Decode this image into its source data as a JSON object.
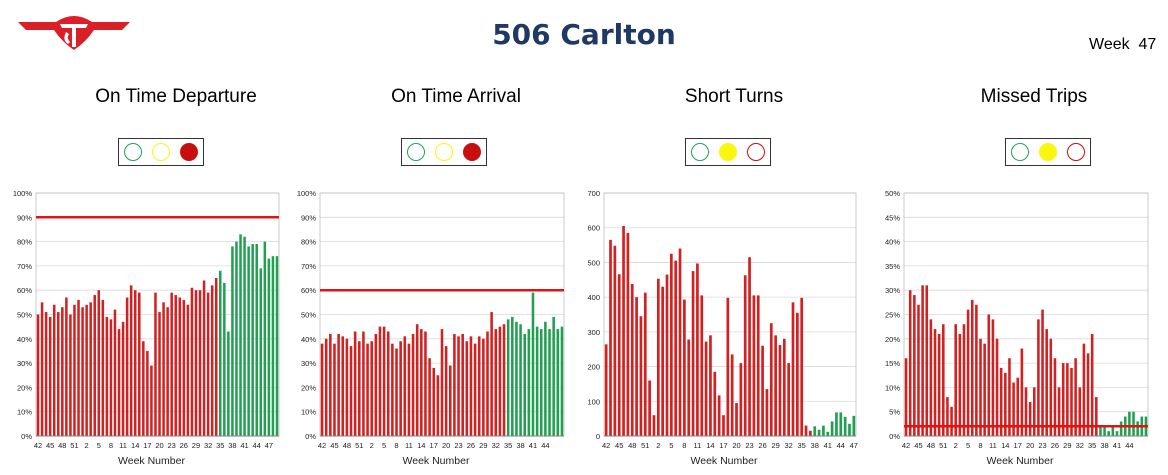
{
  "header": {
    "title": "506 Carlton",
    "week_label": "Week",
    "week_number": "47"
  },
  "colors": {
    "red": "#d32020",
    "green": "#22a052",
    "target": "#e51010",
    "title": "#1f3864",
    "light_green": "#21a35e",
    "light_yellow": "#f7f712",
    "light_red": "#c80f0f"
  },
  "panels": [
    {
      "title": "On Time Departure",
      "lights": {
        "green": "off",
        "yellow": "off",
        "red": "on"
      }
    },
    {
      "title": "On Time Arrival",
      "lights": {
        "green": "off",
        "yellow": "off",
        "red": "on"
      }
    },
    {
      "title": "Short Turns",
      "lights": {
        "green": "off",
        "yellow": "on",
        "red": "off"
      }
    },
    {
      "title": "Missed Trips",
      "lights": {
        "green": "off",
        "yellow": "on",
        "red": "off"
      }
    }
  ],
  "chart_data": [
    {
      "type": "bar",
      "xlabel": "Week Number",
      "ylim": [
        0,
        100
      ],
      "y_ticks": [
        "0%",
        "10%",
        "20%",
        "30%",
        "40%",
        "50%",
        "60%",
        "70%",
        "80%",
        "90%",
        "100%"
      ],
      "x_tick_labels": [
        "42",
        "45",
        "48",
        "51",
        "2",
        "5",
        "8",
        "11",
        "14",
        "17",
        "20",
        "23",
        "26",
        "29",
        "32",
        "35",
        "38",
        "41",
        "44",
        "47"
      ],
      "target": 90,
      "red_count": 45,
      "values": [
        50,
        55,
        51,
        49,
        54,
        51,
        53,
        57,
        50,
        54,
        56,
        53,
        54,
        55,
        58,
        60,
        56,
        49,
        48,
        52,
        44,
        47,
        57,
        62,
        60,
        59,
        39,
        35,
        29,
        59,
        51,
        55,
        53,
        59,
        58,
        57,
        56,
        54,
        61,
        60,
        60,
        64,
        59,
        62,
        65,
        68,
        63,
        43,
        78,
        80,
        83,
        82,
        78,
        79,
        79,
        69,
        80,
        73,
        74,
        74
      ],
      "grid": true
    },
    {
      "type": "bar",
      "xlabel": "Week Number",
      "ylim": [
        0,
        100
      ],
      "y_ticks": [
        "0%",
        "10%",
        "20%",
        "30%",
        "40%",
        "50%",
        "60%",
        "70%",
        "80%",
        "90%",
        "100%"
      ],
      "x_tick_labels": [
        "42",
        "45",
        "48",
        "51",
        "2",
        "5",
        "8",
        "11",
        "14",
        "17",
        "20",
        "23",
        "26",
        "29",
        "32",
        "35",
        "38",
        "41",
        "44"
      ],
      "target": 60,
      "red_count": 45,
      "values": [
        38,
        40,
        42,
        38,
        42,
        41,
        40,
        37,
        43,
        39,
        43,
        38,
        39,
        42,
        45,
        45,
        43,
        38,
        36,
        39,
        41,
        38,
        42,
        46,
        44,
        43,
        32,
        28,
        25,
        44,
        37,
        29,
        42,
        41,
        42,
        39,
        41,
        38,
        41,
        40,
        43,
        51,
        44,
        45,
        46,
        48,
        49,
        47,
        46,
        42,
        44,
        59,
        45,
        44,
        47,
        44,
        49,
        44,
        45
      ],
      "grid": true
    },
    {
      "type": "bar",
      "xlabel": "Week Number",
      "ylim": [
        0,
        700
      ],
      "y_ticks": [
        "0",
        "100",
        "200",
        "300",
        "400",
        "500",
        "600",
        "700"
      ],
      "x_tick_labels": [
        "42",
        "45",
        "48",
        "51",
        "2",
        "5",
        "8",
        "11",
        "14",
        "17",
        "20",
        "23",
        "26",
        "29",
        "32",
        "35",
        "38",
        "41",
        "44",
        "47"
      ],
      "red_count": 48,
      "values": [
        264,
        565,
        548,
        466,
        605,
        585,
        438,
        400,
        345,
        413,
        160,
        60,
        453,
        430,
        465,
        525,
        505,
        540,
        393,
        278,
        475,
        497,
        405,
        272,
        290,
        185,
        117,
        60,
        398,
        235,
        95,
        210,
        463,
        515,
        405,
        405,
        260,
        135,
        325,
        290,
        262,
        280,
        210,
        385,
        355,
        398,
        30,
        15,
        28,
        18,
        30,
        12,
        42,
        68,
        68,
        55,
        35,
        58
      ],
      "grid": true
    },
    {
      "type": "bar",
      "xlabel": "Week Number",
      "ylim": [
        0,
        50
      ],
      "y_ticks": [
        "0%",
        "5%",
        "10%",
        "15%",
        "20%",
        "25%",
        "30%",
        "35%",
        "40%",
        "45%",
        "50%"
      ],
      "x_tick_labels": [
        "42",
        "45",
        "48",
        "51",
        "2",
        "5",
        "8",
        "11",
        "14",
        "17",
        "20",
        "23",
        "26",
        "29",
        "32",
        "35",
        "38",
        "41",
        "44"
      ],
      "target": 2,
      "red_count": 47,
      "values": [
        16,
        30,
        29,
        27,
        31,
        31,
        24,
        22,
        21,
        23,
        8,
        6,
        23,
        21,
        23,
        26,
        28,
        27,
        20,
        19,
        25,
        24,
        20,
        14,
        13,
        16,
        11,
        12,
        18,
        10,
        7,
        10,
        24,
        26,
        22,
        20,
        16,
        10,
        15,
        15,
        14,
        16,
        10,
        19,
        17,
        21,
        8,
        2,
        2,
        1,
        2,
        1,
        3,
        4,
        5,
        5,
        3,
        4,
        4
      ],
      "grid": true
    }
  ]
}
